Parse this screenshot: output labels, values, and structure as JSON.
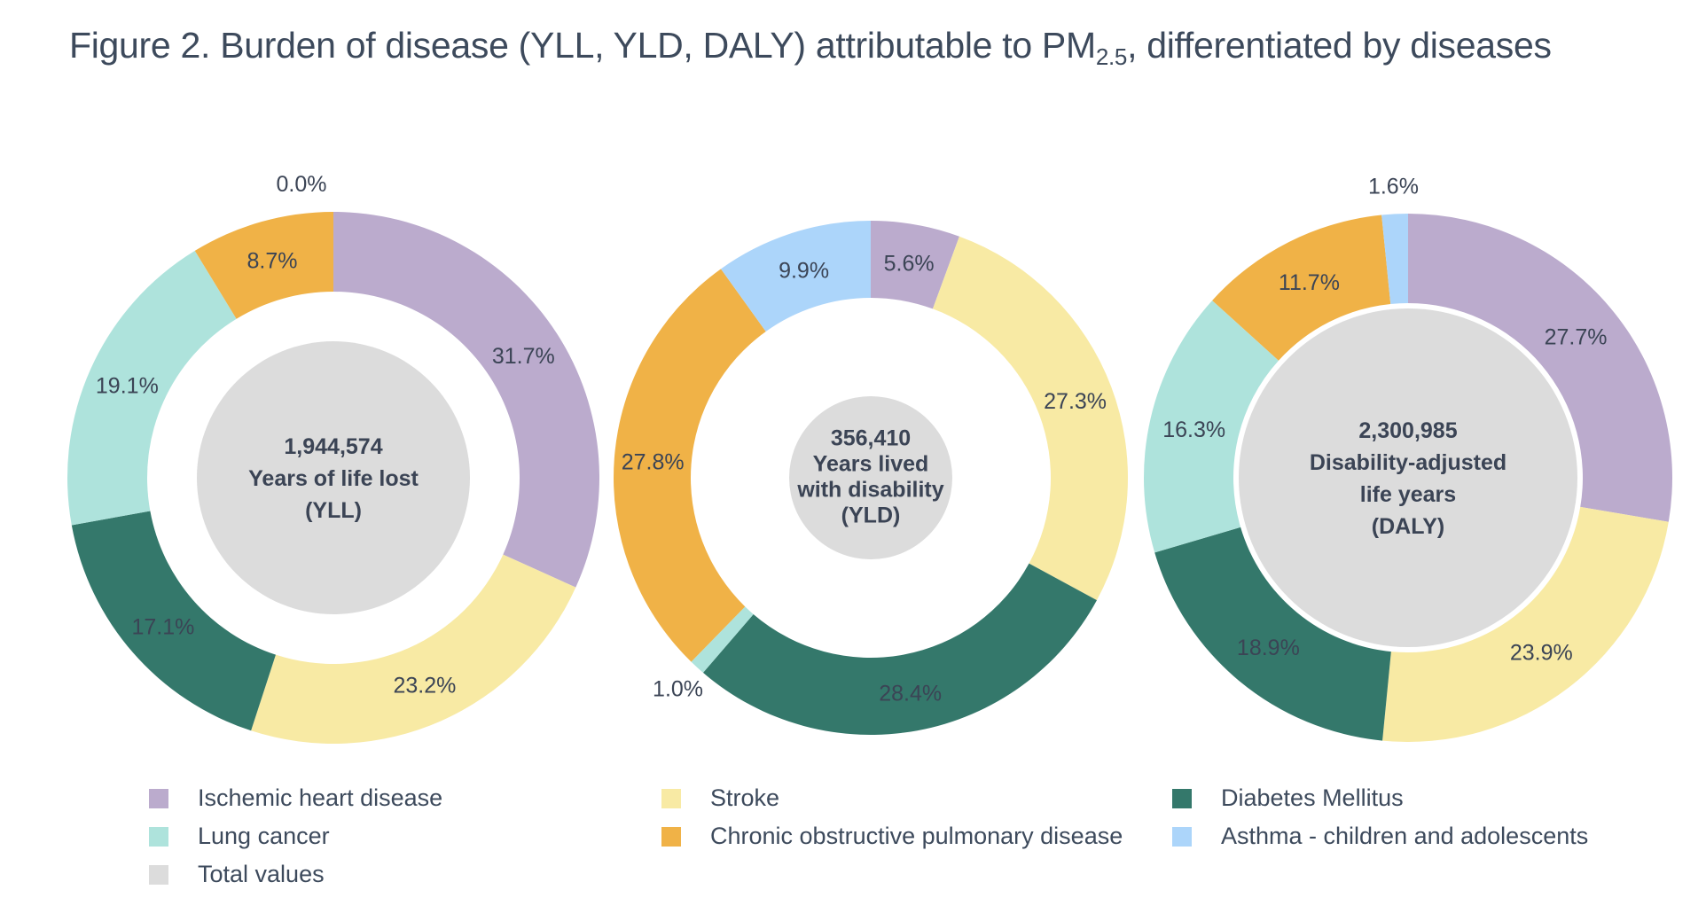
{
  "title": {
    "main": "Figure 2. Burden of disease (YLL, YLD, DALY) attributable to PM",
    "sub": "2.5",
    "rest": ", differentiated by diseases"
  },
  "colors": {
    "ihd": "#bbabcd",
    "stroke": "#f8eaa4",
    "diabetes": "#34786b",
    "lung": "#aee3dc",
    "copd": "#f0b247",
    "asthma": "#acd5fa",
    "total": "#dcdcdc"
  },
  "legend": [
    {
      "key": "ihd",
      "label": "Ischemic heart disease"
    },
    {
      "key": "stroke",
      "label": "Stroke"
    },
    {
      "key": "diabetes",
      "label": "Diabetes Mellitus"
    },
    {
      "key": "lung",
      "label": "Lung cancer"
    },
    {
      "key": "copd",
      "label": "Chronic obstructive pulmonary disease"
    },
    {
      "key": "asthma",
      "label": "Asthma - children and adolescents"
    },
    {
      "key": "total",
      "label": "Total values"
    }
  ],
  "chart_data": [
    {
      "type": "pie",
      "variant": "donut",
      "center_lines": [
        "1,944,574",
        "Years of life lost",
        "(YLL)"
      ],
      "categories": [
        "ihd",
        "stroke",
        "diabetes",
        "lung",
        "copd",
        "asthma"
      ],
      "values": [
        31.7,
        23.2,
        17.1,
        19.1,
        8.7,
        0.0
      ],
      "labels": [
        "31.7%",
        "23.2%",
        "17.1%",
        "19.1%",
        "8.7%",
        "0.0%"
      ]
    },
    {
      "type": "pie",
      "variant": "donut",
      "center_lines": [
        "356,410",
        "Years lived",
        "with disability",
        "(YLD)"
      ],
      "categories": [
        "ihd",
        "stroke",
        "diabetes",
        "lung",
        "copd",
        "asthma"
      ],
      "values": [
        5.6,
        27.3,
        28.4,
        1.0,
        27.8,
        9.9
      ],
      "labels": [
        "5.6%",
        "27.3%",
        "28.4%",
        "1.0%",
        "27.8%",
        "9.9%"
      ]
    },
    {
      "type": "pie",
      "variant": "donut",
      "center_lines": [
        "2,300,985",
        "Disability-adjusted",
        "life years",
        "(DALY)"
      ],
      "categories": [
        "ihd",
        "stroke",
        "diabetes",
        "lung",
        "copd",
        "asthma"
      ],
      "values": [
        27.7,
        23.9,
        18.9,
        16.3,
        11.7,
        1.6
      ],
      "labels": [
        "27.7%",
        "23.9%",
        "18.9%",
        "16.3%",
        "11.7%",
        "1.6%"
      ]
    }
  ]
}
